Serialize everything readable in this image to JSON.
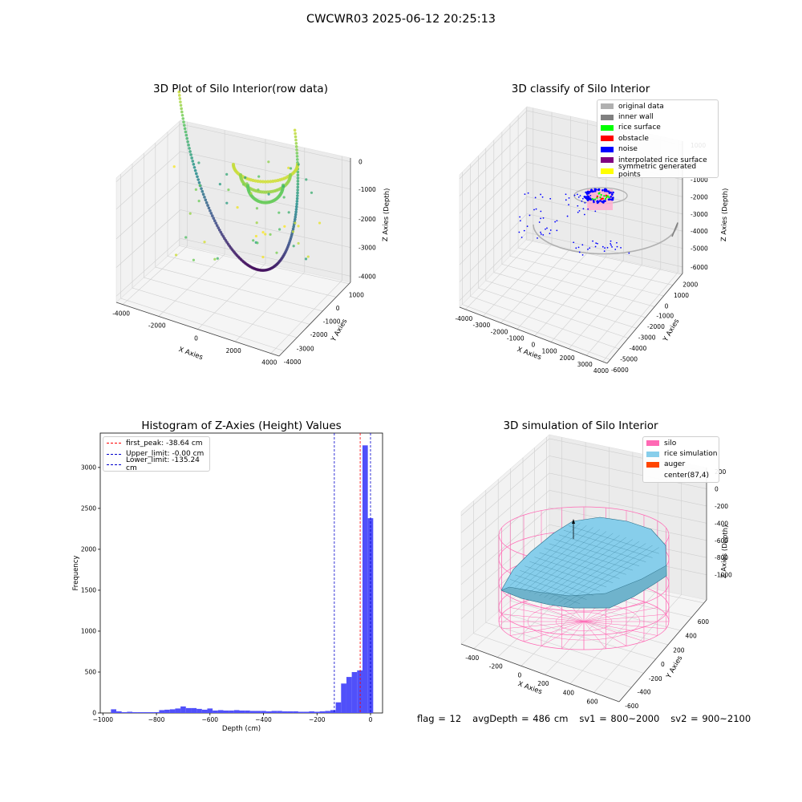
{
  "suptitle": "CWCWR03 2025-06-12 20:25:13",
  "status": {
    "flag": "flag = 12",
    "avg_depth": "avgDepth = 486 cm",
    "sv1": "sv1 = 800~2000",
    "sv2": "sv2 = 900~2100"
  },
  "colors": {
    "hist_bar": "#5050fa",
    "first_peak_line": "#ff0000",
    "limit_lines": "#0000cc",
    "silo_wire": "#ff69b4",
    "rice_surface": "#87ceeb"
  },
  "chart_data": [
    {
      "type": "scatter",
      "subtype": "3d-scatter",
      "title": "3D Plot of Silo Interior(row data)",
      "xlabel": "X Axies",
      "ylabel": "Y Axies",
      "zlabel": "Z Axies (Depth)",
      "colormap": "viridis",
      "xticks": [
        "-4000",
        "-2000",
        "0",
        "2000",
        "4000"
      ],
      "yticks": [
        "-4000",
        "-3000",
        "-2000",
        "-1000",
        "0",
        "1000"
      ],
      "zticks": [
        "0",
        "-1000",
        "-2000",
        "-3000",
        "-4000"
      ],
      "xlim": [
        -4500,
        4500
      ],
      "ylim": [
        -4200,
        1200
      ],
      "zlim": [
        -4500,
        200
      ]
    },
    {
      "type": "scatter",
      "subtype": "3d-scatter",
      "title": "3D classify of Silo Interior",
      "xlabel": "X Axies",
      "ylabel": "Y Axies",
      "zlabel": "Z Axies (Depth)",
      "xticks": [
        "-4000",
        "-3000",
        "-2000",
        "-1000",
        "0",
        "1000",
        "2000",
        "3000",
        "4000"
      ],
      "yticks": [
        "-6000",
        "-5000",
        "-4000",
        "-3000",
        "-2000",
        "-1000",
        "0",
        "1000",
        "2000"
      ],
      "zticks": [
        "1000",
        "0",
        "-1000",
        "-2000",
        "-3000",
        "-4000",
        "-5000",
        "-6000"
      ],
      "xlim": [
        -4200,
        4200
      ],
      "ylim": [
        -6000,
        2500
      ],
      "zlim": [
        -6500,
        1500
      ],
      "legend": [
        {
          "label": "original data",
          "color": "#b0b0b0"
        },
        {
          "label": "inner wall",
          "color": "#808080"
        },
        {
          "label": "rice surface",
          "color": "#00ff00"
        },
        {
          "label": "obstacle",
          "color": "#ff0000"
        },
        {
          "label": "noise",
          "color": "#0000ff"
        },
        {
          "label": "interpolated rice surface",
          "color": "#800080"
        },
        {
          "label": "symmetric generated points",
          "color": "#ffff00"
        }
      ],
      "legend_loc": "upper right"
    },
    {
      "type": "bar",
      "subtype": "histogram",
      "title": "Histogram of Z-Axies (Height) Values",
      "xlabel": "Depth (cm)",
      "ylabel": "Frequency",
      "xlim": [
        -1010,
        45
      ],
      "ylim": [
        0,
        3420
      ],
      "xticks": [
        -1000,
        -800,
        -600,
        -400,
        -200,
        0
      ],
      "yticks": [
        0,
        500,
        1000,
        1500,
        2000,
        2500,
        3000
      ],
      "bin_width": 20,
      "bin_starts": [
        -970,
        -950,
        -930,
        -910,
        -890,
        -870,
        -850,
        -830,
        -810,
        -790,
        -770,
        -750,
        -730,
        -710,
        -690,
        -670,
        -650,
        -630,
        -610,
        -590,
        -570,
        -550,
        -530,
        -510,
        -490,
        -470,
        -450,
        -430,
        -410,
        -390,
        -370,
        -350,
        -330,
        -310,
        -290,
        -270,
        -250,
        -230,
        -210,
        -190,
        -170,
        -150,
        -130,
        -110,
        -90,
        -70,
        -50,
        -30,
        -10
      ],
      "values": [
        45,
        20,
        10,
        15,
        10,
        10,
        10,
        10,
        10,
        35,
        40,
        45,
        55,
        80,
        60,
        60,
        50,
        40,
        55,
        30,
        35,
        30,
        30,
        35,
        30,
        30,
        25,
        25,
        25,
        20,
        25,
        25,
        20,
        20,
        20,
        15,
        15,
        20,
        15,
        20,
        25,
        35,
        130,
        360,
        440,
        500,
        520,
        3270,
        2380
      ],
      "vlines": [
        {
          "label": "first_peak: -38.64 cm",
          "x": -38.64,
          "color": "#ff0000"
        },
        {
          "label": "Upper_limit: -0.00 cm",
          "x": 0.0,
          "color": "#0000cc"
        },
        {
          "label": "Lower_limit: -135.24 cm",
          "x": -135.24,
          "color": "#0000cc"
        }
      ],
      "legend_loc": "upper left"
    },
    {
      "type": "area",
      "subtype": "3d-surface",
      "title": "3D simulation of Silo Interior",
      "xlabel": "X Axies",
      "ylabel": "Y Axies",
      "zlabel": "Z Axies (Depth)",
      "xticks": [
        "-400",
        "-200",
        "0",
        "200",
        "400",
        "600"
      ],
      "yticks": [
        "-600",
        "-400",
        "-200",
        "0",
        "200",
        "400",
        "600"
      ],
      "zticks": [
        "200",
        "0",
        "-200",
        "-400",
        "-600",
        "-800",
        "-1000"
      ],
      "xlim": [
        -600,
        700
      ],
      "ylim": [
        -650,
        650
      ],
      "zlim": [
        -1050,
        300
      ],
      "legend": [
        {
          "label": "silo",
          "color": "#ff69b4"
        },
        {
          "label": "rice simulation",
          "color": "#87ceeb"
        },
        {
          "label": "auger",
          "color": "#ff4500"
        },
        {
          "label": "center(87,4)",
          "color": ""
        }
      ],
      "legend_loc": "upper right"
    }
  ]
}
